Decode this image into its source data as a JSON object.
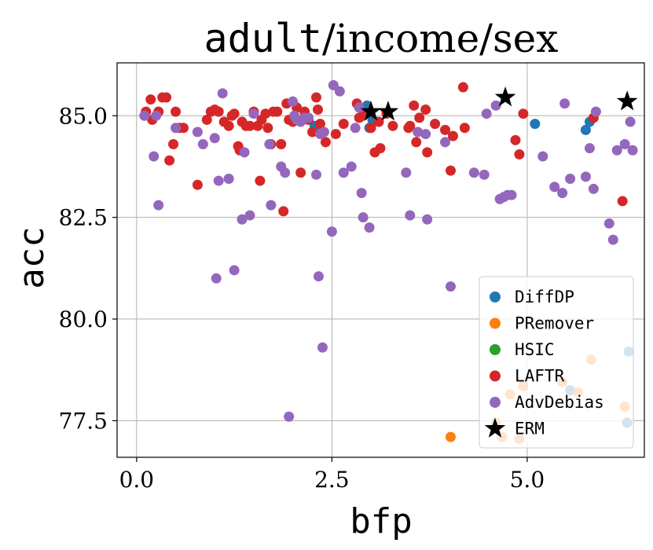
{
  "chart_data": {
    "type": "scatter",
    "title_parts": [
      "adult",
      "/income/sex"
    ],
    "xlabel": "bfp",
    "ylabel": "acc",
    "xlim": [
      -0.25,
      6.5
    ],
    "ylim": [
      76.6,
      86.3
    ],
    "xticks": [
      0.0,
      2.5,
      5.0
    ],
    "xtick_labels": [
      "0.0",
      "2.5",
      "5.0"
    ],
    "yticks": [
      77.5,
      80.0,
      82.5,
      85.0
    ],
    "ytick_labels": [
      "77.5",
      "80.0",
      "82.5",
      "85.0"
    ],
    "grid": true,
    "legend_position": "lower-right",
    "series": [
      {
        "name": "DiffDP",
        "color": "#1f77b4",
        "marker": "circle",
        "x": [
          2.28,
          2.98,
          2.95,
          3.02,
          5.1,
          5.75,
          5.8,
          5.55,
          6.28,
          6.3
        ],
        "y": [
          84.75,
          84.7,
          85.25,
          84.9,
          84.8,
          84.65,
          84.85,
          78.25,
          77.45,
          79.2
        ]
      },
      {
        "name": "PRemover",
        "color": "#ff7f0e",
        "marker": "circle",
        "x": [
          4.02,
          4.6,
          4.68,
          4.78,
          4.9,
          4.95,
          5.45,
          5.65,
          5.82,
          6.25
        ],
        "y": [
          77.1,
          77.45,
          77.1,
          78.15,
          77.05,
          78.35,
          78.45,
          78.2,
          79.0,
          77.85
        ]
      },
      {
        "name": "HSIC",
        "color": "#2ca02c",
        "marker": "circle",
        "x": [],
        "y": []
      },
      {
        "name": "LAFTR",
        "color": "#d62728",
        "marker": "circle",
        "x": [
          0.12,
          0.18,
          0.2,
          0.28,
          0.33,
          0.38,
          0.42,
          0.47,
          0.5,
          0.55,
          0.6,
          0.78,
          0.9,
          0.95,
          1.0,
          1.05,
          1.12,
          1.18,
          1.22,
          1.25,
          1.3,
          1.32,
          1.35,
          1.4,
          1.45,
          1.5,
          1.55,
          1.58,
          1.6,
          1.65,
          1.68,
          1.72,
          1.75,
          1.8,
          1.85,
          1.88,
          1.92,
          1.95,
          2.0,
          2.05,
          2.1,
          2.15,
          2.2,
          2.25,
          2.3,
          2.32,
          2.35,
          2.42,
          2.55,
          2.65,
          2.82,
          2.85,
          2.9,
          3.0,
          3.05,
          3.1,
          3.12,
          3.2,
          3.28,
          3.48,
          3.5,
          3.55,
          3.58,
          3.62,
          3.7,
          3.72,
          3.82,
          3.95,
          4.02,
          4.05,
          4.18,
          4.2,
          4.85,
          4.9,
          4.95,
          5.85,
          6.22
        ],
        "y": [
          85.1,
          85.4,
          84.9,
          85.1,
          85.45,
          85.45,
          83.9,
          84.3,
          85.1,
          84.7,
          84.7,
          83.3,
          84.9,
          85.1,
          85.15,
          85.1,
          84.85,
          84.75,
          85.0,
          85.05,
          84.25,
          84.15,
          84.85,
          84.75,
          84.75,
          85.1,
          84.75,
          83.4,
          84.9,
          85.05,
          84.7,
          84.3,
          85.1,
          85.1,
          84.3,
          82.65,
          85.3,
          84.9,
          84.85,
          85.2,
          83.6,
          85.1,
          84.9,
          84.6,
          85.45,
          85.15,
          84.8,
          84.35,
          84.55,
          84.8,
          85.3,
          84.95,
          85.0,
          84.7,
          84.1,
          84.85,
          84.2,
          85.05,
          84.75,
          84.7,
          84.75,
          85.25,
          84.35,
          84.95,
          85.15,
          84.1,
          84.8,
          84.65,
          83.65,
          84.5,
          85.7,
          84.7,
          84.4,
          84.05,
          85.05,
          84.95,
          82.9
        ]
      },
      {
        "name": "AdvDebias",
        "color": "#9467bd",
        "marker": "circle",
        "x": [
          0.22,
          0.25,
          0.28,
          0.5,
          0.78,
          0.85,
          1.0,
          1.02,
          1.05,
          1.1,
          1.18,
          1.25,
          1.35,
          1.38,
          1.45,
          1.5,
          1.7,
          1.72,
          1.85,
          1.9,
          1.95,
          2.0,
          2.02,
          2.05,
          2.1,
          2.15,
          2.2,
          2.3,
          2.33,
          2.35,
          2.38,
          2.4,
          2.5,
          2.52,
          2.6,
          2.65,
          2.75,
          2.8,
          2.85,
          2.88,
          2.9,
          2.98,
          3.45,
          3.5,
          3.6,
          3.7,
          3.72,
          3.95,
          4.02,
          4.32,
          4.45,
          4.48,
          4.6,
          4.65,
          4.7,
          4.75,
          4.8,
          5.2,
          5.35,
          5.45,
          5.48,
          5.55,
          5.75,
          5.8,
          5.85,
          5.88,
          6.05,
          6.1,
          6.15,
          6.25,
          6.32,
          6.35,
          0.1
        ],
        "y": [
          84.0,
          85.0,
          82.8,
          84.7,
          84.6,
          84.3,
          84.45,
          81.0,
          83.4,
          85.55,
          83.45,
          81.2,
          82.45,
          84.1,
          82.55,
          85.05,
          84.3,
          82.8,
          83.75,
          83.6,
          77.6,
          85.35,
          85.0,
          84.9,
          84.85,
          84.95,
          84.95,
          83.55,
          81.05,
          84.55,
          79.3,
          84.6,
          82.15,
          85.75,
          85.6,
          83.6,
          83.75,
          84.7,
          85.2,
          83.1,
          82.5,
          82.25,
          83.6,
          82.55,
          84.6,
          84.55,
          82.45,
          84.35,
          80.8,
          83.6,
          83.55,
          85.05,
          85.25,
          82.95,
          83.0,
          83.05,
          83.05,
          84.0,
          83.25,
          83.1,
          85.3,
          83.45,
          83.5,
          84.2,
          83.2,
          85.1,
          82.35,
          81.95,
          84.15,
          84.3,
          84.85,
          84.15,
          85.0
        ],
        "note_x": []
      },
      {
        "name": "ERM",
        "color": "#000000",
        "marker": "star",
        "x": [
          3.0,
          3.22,
          4.72,
          6.28
        ],
        "y": [
          85.1,
          85.1,
          85.45,
          85.35
        ]
      }
    ]
  }
}
